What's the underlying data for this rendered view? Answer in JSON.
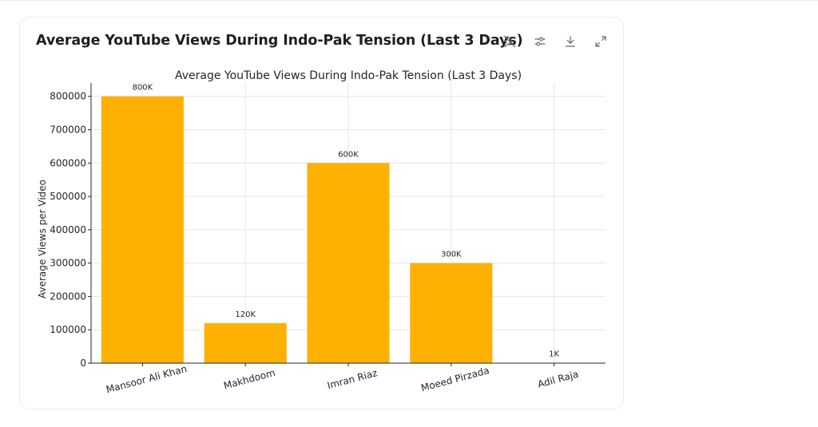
{
  "card": {
    "title": "Average YouTube Views During Indo-Pak Tension (Last 3 Days)",
    "toolbar": [
      {
        "name": "pin-chart-icon"
      },
      {
        "name": "chart-settings-icon"
      },
      {
        "name": "download-icon"
      },
      {
        "name": "expand-icon"
      }
    ]
  },
  "colors": {
    "bar": "#FFB000",
    "grid": "#e6e6e6",
    "axis": "#262626"
  },
  "chart_data": {
    "type": "bar",
    "title": "Average YouTube Views During Indo-Pak Tension (Last 3 Days)",
    "xlabel": "",
    "ylabel": "Average Views per Video",
    "categories": [
      "Mansoor Ali Khan",
      "Makhdoom",
      "Imran Riaz",
      "Moeed Pirzada",
      "Adil Raja"
    ],
    "values": [
      800000,
      120000,
      600000,
      300000,
      1000
    ],
    "data_labels": [
      "800K",
      "120K",
      "600K",
      "300K",
      "1K"
    ],
    "ylim": [
      0,
      840000
    ],
    "yticks": [
      0,
      100000,
      200000,
      300000,
      400000,
      500000,
      600000,
      700000,
      800000
    ],
    "ytick_labels": [
      "0",
      "100000",
      "200000",
      "300000",
      "400000",
      "500000",
      "600000",
      "700000",
      "800000"
    ],
    "grid": true,
    "xtick_rotation": 15
  }
}
